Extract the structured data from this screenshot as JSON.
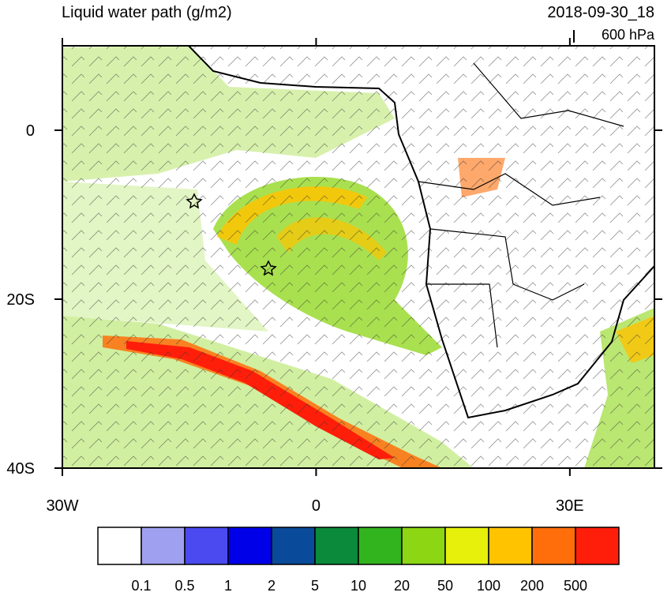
{
  "header": {
    "title": "Liquid water path (g/m2)",
    "time": "2018-09-30_18",
    "level": "600 hPa"
  },
  "map": {
    "lon_range": [
      -30,
      40
    ],
    "lat_range": [
      -40,
      10
    ],
    "lon_ticks": [
      {
        "value": -30,
        "label": "30W"
      },
      0,
      {
        "value": 30,
        "label": "30E"
      }
    ],
    "lat_ticks": [
      0,
      {
        "value": -20,
        "label": "20S"
      },
      {
        "value": -40,
        "label": "40S"
      }
    ]
  },
  "colorbar": {
    "levels": [
      0.1,
      0.5,
      1,
      2,
      5,
      10,
      20,
      50,
      100,
      200,
      500
    ],
    "colors": [
      "#ffffff",
      "#a0a0f0",
      "#4a4af0",
      "#0000e8",
      "#0a4a9a",
      "#0a8a3a",
      "#32b41e",
      "#8cd614",
      "#e6f00a",
      "#ffc300",
      "#ff6e0a",
      "#ff1e0a"
    ]
  }
}
